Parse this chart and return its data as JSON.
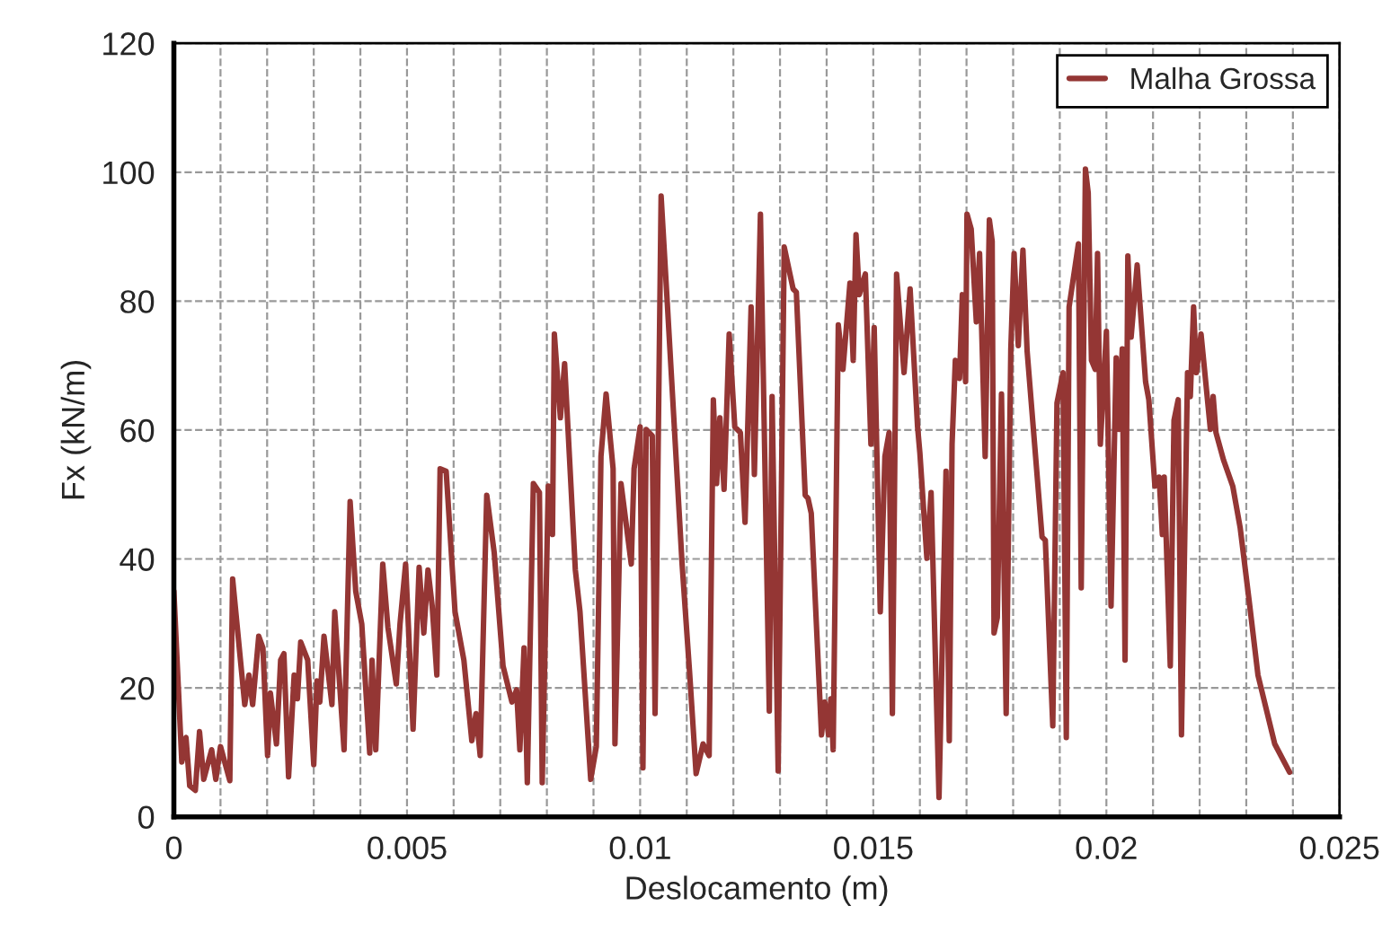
{
  "chart_data": {
    "type": "line",
    "xlabel": "Deslocamento (m)",
    "ylabel": "Fx (kN/m)",
    "xlim": [
      0,
      0.025
    ],
    "ylim": [
      0,
      120
    ],
    "xticks": [
      0,
      {
        "value": 0.001,
        "label": null
      },
      {
        "value": 0.002,
        "label": null
      },
      {
        "value": 0.003,
        "label": null
      },
      {
        "value": 0.004,
        "label": null
      },
      0.005,
      {
        "value": 0.006,
        "label": null
      },
      {
        "value": 0.007,
        "label": null
      },
      {
        "value": 0.008,
        "label": null
      },
      {
        "value": 0.009,
        "label": null
      },
      0.01,
      {
        "value": 0.011,
        "label": null
      },
      {
        "value": 0.012,
        "label": null
      },
      {
        "value": 0.013,
        "label": null
      },
      {
        "value": 0.014,
        "label": null
      },
      0.015,
      {
        "value": 0.016,
        "label": null
      },
      {
        "value": 0.017,
        "label": null
      },
      {
        "value": 0.018,
        "label": null
      },
      {
        "value": 0.019,
        "label": null
      },
      0.02,
      {
        "value": 0.021,
        "label": null
      },
      {
        "value": 0.022,
        "label": null
      },
      {
        "value": 0.023,
        "label": null
      },
      {
        "value": 0.024,
        "label": null
      },
      0.025
    ],
    "yticks": [
      0,
      20,
      40,
      60,
      80,
      100,
      120
    ],
    "grid": true,
    "legend": "top right",
    "marker": "none",
    "line_style": "solid",
    "series": [
      {
        "name": "Malha Grossa",
        "color": "#943634",
        "x": [
          0,
          0.00017,
          0.00026,
          0.00034,
          0.00046,
          0.00055,
          0.00064,
          0.00081,
          0.0009,
          0.001,
          0.0012,
          0.00126,
          0.00152,
          0.00161,
          0.00169,
          0.00182,
          0.00191,
          0.00201,
          0.00207,
          0.0022,
          0.00229,
          0.00236,
          0.00246,
          0.00258,
          0.00265,
          0.00272,
          0.00287,
          0.003,
          0.00307,
          0.00313,
          0.00322,
          0.00339,
          0.00345,
          0.00365,
          0.00378,
          0.0039,
          0.00403,
          0.0042,
          0.00425,
          0.00433,
          0.00448,
          0.00459,
          0.00477,
          0.00485,
          0.00497,
          0.00513,
          0.00526,
          0.00536,
          0.00545,
          0.00554,
          0.00564,
          0.00571,
          0.00584,
          0.00603,
          0.00622,
          0.00639,
          0.00648,
          0.00657,
          0.00671,
          0.00687,
          0.00706,
          0.00725,
          0.00735,
          0.00742,
          0.00751,
          0.00758,
          0.00771,
          0.00784,
          0.0079,
          0.00803,
          0.00812,
          0.00816,
          0.00829,
          0.00838,
          0.00861,
          0.00871,
          0.00894,
          0.00906,
          0.00916,
          0.00927,
          0.00942,
          0.00946,
          0.00959,
          0.00981,
          0.00987,
          0.01,
          0.01006,
          0.01013,
          0.01026,
          0.01032,
          0.01045,
          0.01058,
          0.0109,
          0.01106,
          0.0112,
          0.01135,
          0.01148,
          0.01157,
          0.01164,
          0.01171,
          0.0118,
          0.01191,
          0.01203,
          0.01215,
          0.01225,
          0.01238,
          0.01245,
          0.01258,
          0.01277,
          0.01283,
          0.01296,
          0.01309,
          0.01328,
          0.01335,
          0.01354,
          0.0136,
          0.01367,
          0.01389,
          0.01396,
          0.01404,
          0.01409,
          0.01414,
          0.01425,
          0.01435,
          0.0145,
          0.01457,
          0.01463,
          0.0147,
          0.01483,
          0.01495,
          0.01502,
          0.01515,
          0.01525,
          0.01534,
          0.01541,
          0.0155,
          0.01566,
          0.01579,
          0.01595,
          0.016,
          0.01615,
          0.01624,
          0.01641,
          0.01656,
          0.01663,
          0.01669,
          0.01676,
          0.01685,
          0.01691,
          0.01698,
          0.01701,
          0.0171,
          0.01721,
          0.01728,
          0.0174,
          0.01749,
          0.01755,
          0.01759,
          0.01766,
          0.01775,
          0.01785,
          0.01795,
          0.01802,
          0.01811,
          0.01821,
          0.0183,
          0.01862,
          0.01869,
          0.01885,
          0.01894,
          0.01907,
          0.01914,
          0.0192,
          0.0194,
          0.01946,
          0.01955,
          0.01961,
          0.01968,
          0.01976,
          0.01981,
          0.01987,
          0.02,
          0.0201,
          0.02021,
          0.02027,
          0.02034,
          0.0204,
          0.02046,
          0.02053,
          0.02066,
          0.02084,
          0.02091,
          0.02104,
          0.02113,
          0.0212,
          0.02124,
          0.02137,
          0.02145,
          0.02154,
          0.02161,
          0.02174,
          0.0218,
          0.02187,
          0.02193,
          0.02203,
          0.02223,
          0.02229,
          0.02235,
          0.02251,
          0.02271,
          0.02287,
          0.02306,
          0.02325,
          0.02361,
          0.02393
        ],
        "values": [
          35,
          8.5,
          12.3,
          4.8,
          4.1,
          13.2,
          5.8,
          10.4,
          5.8,
          10.9,
          5.6,
          36.9,
          17.4,
          22,
          17.4,
          28,
          26.2,
          9.5,
          19.2,
          11.3,
          24.3,
          25.3,
          6.2,
          22,
          18.3,
          27.1,
          24.3,
          8.1,
          21.1,
          17.8,
          28,
          17.4,
          31.8,
          10.4,
          48.9,
          35,
          29.9,
          9.9,
          24.3,
          10.4,
          39.2,
          29.4,
          20.6,
          29.9,
          39.2,
          13.6,
          38.7,
          28.5,
          38.3,
          32.7,
          22,
          54,
          53.6,
          31.8,
          24.3,
          11.8,
          16,
          9.5,
          49.9,
          41,
          23.4,
          17.8,
          19.7,
          10.4,
          26.2,
          5.3,
          51.7,
          50.3,
          5.3,
          51.3,
          43.8,
          74.9,
          61.9,
          70.3,
          38.3,
          31.8,
          5.8,
          10.9,
          55.9,
          65.6,
          54,
          11.3,
          51.7,
          39.2,
          54,
          60.5,
          7.6,
          60.1,
          59.1,
          16,
          96.3,
          80,
          39.2,
          22.5,
          6.7,
          11.3,
          9.5,
          64.7,
          51.7,
          61.9,
          50.8,
          74.9,
          60.5,
          59.6,
          45.7,
          79.1,
          53.1,
          93.5,
          16.4,
          65.2,
          7.1,
          88.4,
          81.9,
          81.4,
          49.9,
          49.4,
          47.1,
          12.7,
          17.8,
          12.7,
          18.3,
          10.4,
          76.3,
          69.4,
          82.8,
          70.8,
          90.3,
          81,
          84.2,
          57.8,
          75.9,
          31.8,
          55.9,
          59.6,
          16,
          84.2,
          68.9,
          81.9,
          60.5,
          56.4,
          40.1,
          50.3,
          3,
          53.6,
          11.8,
          57.8,
          70.8,
          68,
          81,
          67.5,
          93.5,
          91.2,
          76.8,
          87.4,
          55.9,
          92.6,
          89.3,
          28.5,
          30.9,
          65.6,
          16,
          72.6,
          87.4,
          73.1,
          87.9,
          72.2,
          43.4,
          42.9,
          14.1,
          64.2,
          68.9,
          12.3,
          79.1,
          88.9,
          35.5,
          100.5,
          96.8,
          70.8,
          69.4,
          87.4,
          57.8,
          75.3,
          32.7,
          71.2,
          60.1,
          72.6,
          24.3,
          87,
          74.4,
          85.6,
          67.5,
          64.7,
          51.3,
          52.7,
          43.8,
          52.7,
          23.4,
          61.5,
          64.7,
          12.7,
          68.9,
          65.2,
          79.1,
          68.9,
          74.9,
          60.1,
          65.2,
          59.6,
          55.4,
          51.3,
          44.8,
          33.6,
          22,
          11.3,
          6.9
        ]
      }
    ]
  }
}
